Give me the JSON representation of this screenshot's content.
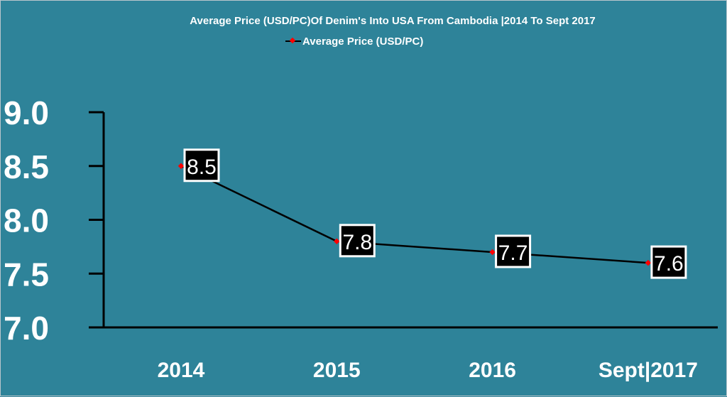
{
  "chart_data": {
    "type": "line",
    "title": "Average Price (USD/PC)Of Denim's Into USA From Cambodia |2014 To Sept 2017",
    "categories": [
      "2014",
      "2015",
      "2016",
      "Sept|2017"
    ],
    "series": [
      {
        "name": "Average Price (USD/PC)",
        "values": [
          8.5,
          7.8,
          7.7,
          7.6
        ]
      }
    ],
    "data_labels": [
      "8.5",
      "7.8",
      "7.7",
      "7.6"
    ],
    "y_ticks": [
      "7.0",
      "7.5",
      "8.0",
      "8.5",
      "9.0"
    ],
    "ylim": [
      7.0,
      9.0
    ],
    "xlabel": "",
    "ylabel": "",
    "grid": false,
    "legend": "top",
    "colors": {
      "background": "#2e8399",
      "line": "#000000",
      "marker": "#ff0000",
      "label_box": "#000000",
      "text": "#ffffff"
    }
  }
}
